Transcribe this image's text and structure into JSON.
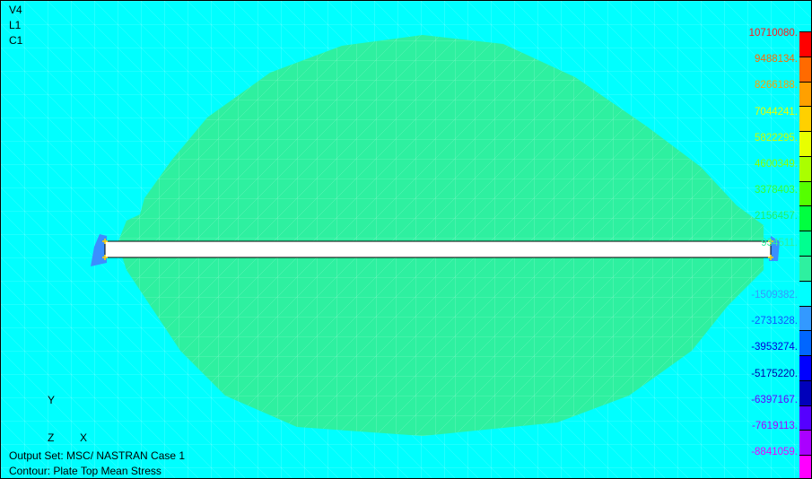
{
  "view_labels": {
    "v": "V4",
    "l": "L1",
    "c": "C1"
  },
  "axes": {
    "y": "Y",
    "z": "Z",
    "x": "X"
  },
  "footer": {
    "output_set": "Output Set: MSC/ NASTRAN Case 1",
    "contour": "Contour: Plate Top Mean Stress"
  },
  "colors": {
    "background": "#00ffff",
    "stress_region": "#2ef0a0",
    "beam": "#ffffff"
  },
  "legend": {
    "values": [
      {
        "text": "10710080.",
        "color": "#ff1a1a"
      },
      {
        "text": "9488134.",
        "color": "#ff6a00"
      },
      {
        "text": "8266188.",
        "color": "#ffa000"
      },
      {
        "text": "7044241.",
        "color": "#e8ff00"
      },
      {
        "text": "5822295.",
        "color": "#c8ff00"
      },
      {
        "text": "4600349.",
        "color": "#88ff00"
      },
      {
        "text": "3378403.",
        "color": "#33ff33"
      },
      {
        "text": "2156457.",
        "color": "#22ee66"
      },
      {
        "text": "934511.",
        "color": "#2ef0a0"
      },
      {
        "text": "",
        "color": "#2ef0a0"
      },
      {
        "text": "-1509382.",
        "color": "#3399ff"
      },
      {
        "text": "-2731328.",
        "color": "#1155ff"
      },
      {
        "text": "-3953274.",
        "color": "#0000dd"
      },
      {
        "text": "-5175220.",
        "color": "#0000aa"
      },
      {
        "text": "-6397167.",
        "color": "#6600ff"
      },
      {
        "text": "-7619113.",
        "color": "#aa00ff"
      },
      {
        "text": "-8841059.",
        "color": "#ee00ff"
      }
    ],
    "swatches": [
      "#ff0000",
      "#ff6a00",
      "#ffa000",
      "#ffd000",
      "#e8ff00",
      "#aaff00",
      "#55ff00",
      "#00ff40",
      "#00ff90",
      "#2ef0a0",
      "#00ffff",
      "#3399ff",
      "#0066ff",
      "#0000ff",
      "#0000bb",
      "#5500ff",
      "#aa00ff",
      "#ff00ff"
    ]
  }
}
